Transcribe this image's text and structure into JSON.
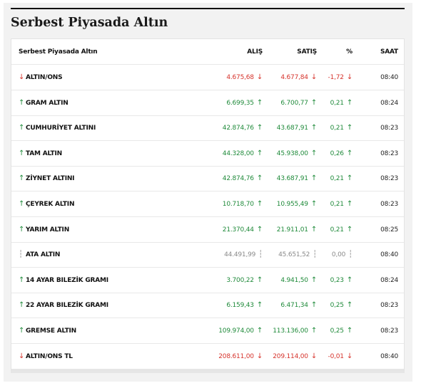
{
  "title": "Serbest Piyasada Altın",
  "table": {
    "headers": {
      "name": "Serbest Piyasada Altın",
      "alis": "ALIŞ",
      "satis": "SATIŞ",
      "pct": "%",
      "saat": "SAAT"
    },
    "rows": [
      {
        "name": "ALTIN/ONS",
        "alis": "4.675,68",
        "satis": "4.677,84",
        "pct": "-1,72",
        "saat": "08:40",
        "trend": "down"
      },
      {
        "name": "GRAM ALTIN",
        "alis": "6.699,35",
        "satis": "6.700,77",
        "pct": "0,21",
        "saat": "08:24",
        "trend": "up"
      },
      {
        "name": "CUMHURİYET ALTINI",
        "alis": "42.874,76",
        "satis": "43.687,91",
        "pct": "0,21",
        "saat": "08:23",
        "trend": "up"
      },
      {
        "name": "TAM ALTIN",
        "alis": "44.328,00",
        "satis": "45.938,00",
        "pct": "0,26",
        "saat": "08:23",
        "trend": "up"
      },
      {
        "name": "ZİYNET ALTINI",
        "alis": "42.874,76",
        "satis": "43.687,91",
        "pct": "0,21",
        "saat": "08:23",
        "trend": "up"
      },
      {
        "name": "ÇEYREK ALTIN",
        "alis": "10.718,70",
        "satis": "10.955,49",
        "pct": "0,21",
        "saat": "08:23",
        "trend": "up"
      },
      {
        "name": "YARIM ALTIN",
        "alis": "21.370,44",
        "satis": "21.911,01",
        "pct": "0,21",
        "saat": "08:25",
        "trend": "up"
      },
      {
        "name": "ATA ALTIN",
        "alis": "44.491,99",
        "satis": "45.651,52",
        "pct": "0,00",
        "saat": "08:40",
        "trend": "flat"
      },
      {
        "name": "14 AYAR BILEZİK GRAMI",
        "alis": "3.700,22",
        "satis": "4.941,50",
        "pct": "0,23",
        "saat": "08:24",
        "trend": "up"
      },
      {
        "name": "22 AYAR BILEZİK GRAMI",
        "alis": "6.159,43",
        "satis": "6.471,34",
        "pct": "0,25",
        "saat": "08:23",
        "trend": "up"
      },
      {
        "name": "GREMSE ALTIN",
        "alis": "109.974,00",
        "satis": "113.136,00",
        "pct": "0,25",
        "saat": "08:23",
        "trend": "up"
      },
      {
        "name": "ALTIN/ONS TL",
        "alis": "208.611,00",
        "satis": "209.114,00",
        "pct": "-0,01",
        "saat": "08:40",
        "trend": "down"
      }
    ]
  },
  "icons": {
    "up": "arrow-up-icon",
    "down": "arrow-down-icon",
    "flat": "dotted-line-icon"
  },
  "colors": {
    "up": "#1f8a3a",
    "down": "#d6332c",
    "flat": "#8a8a8a"
  }
}
